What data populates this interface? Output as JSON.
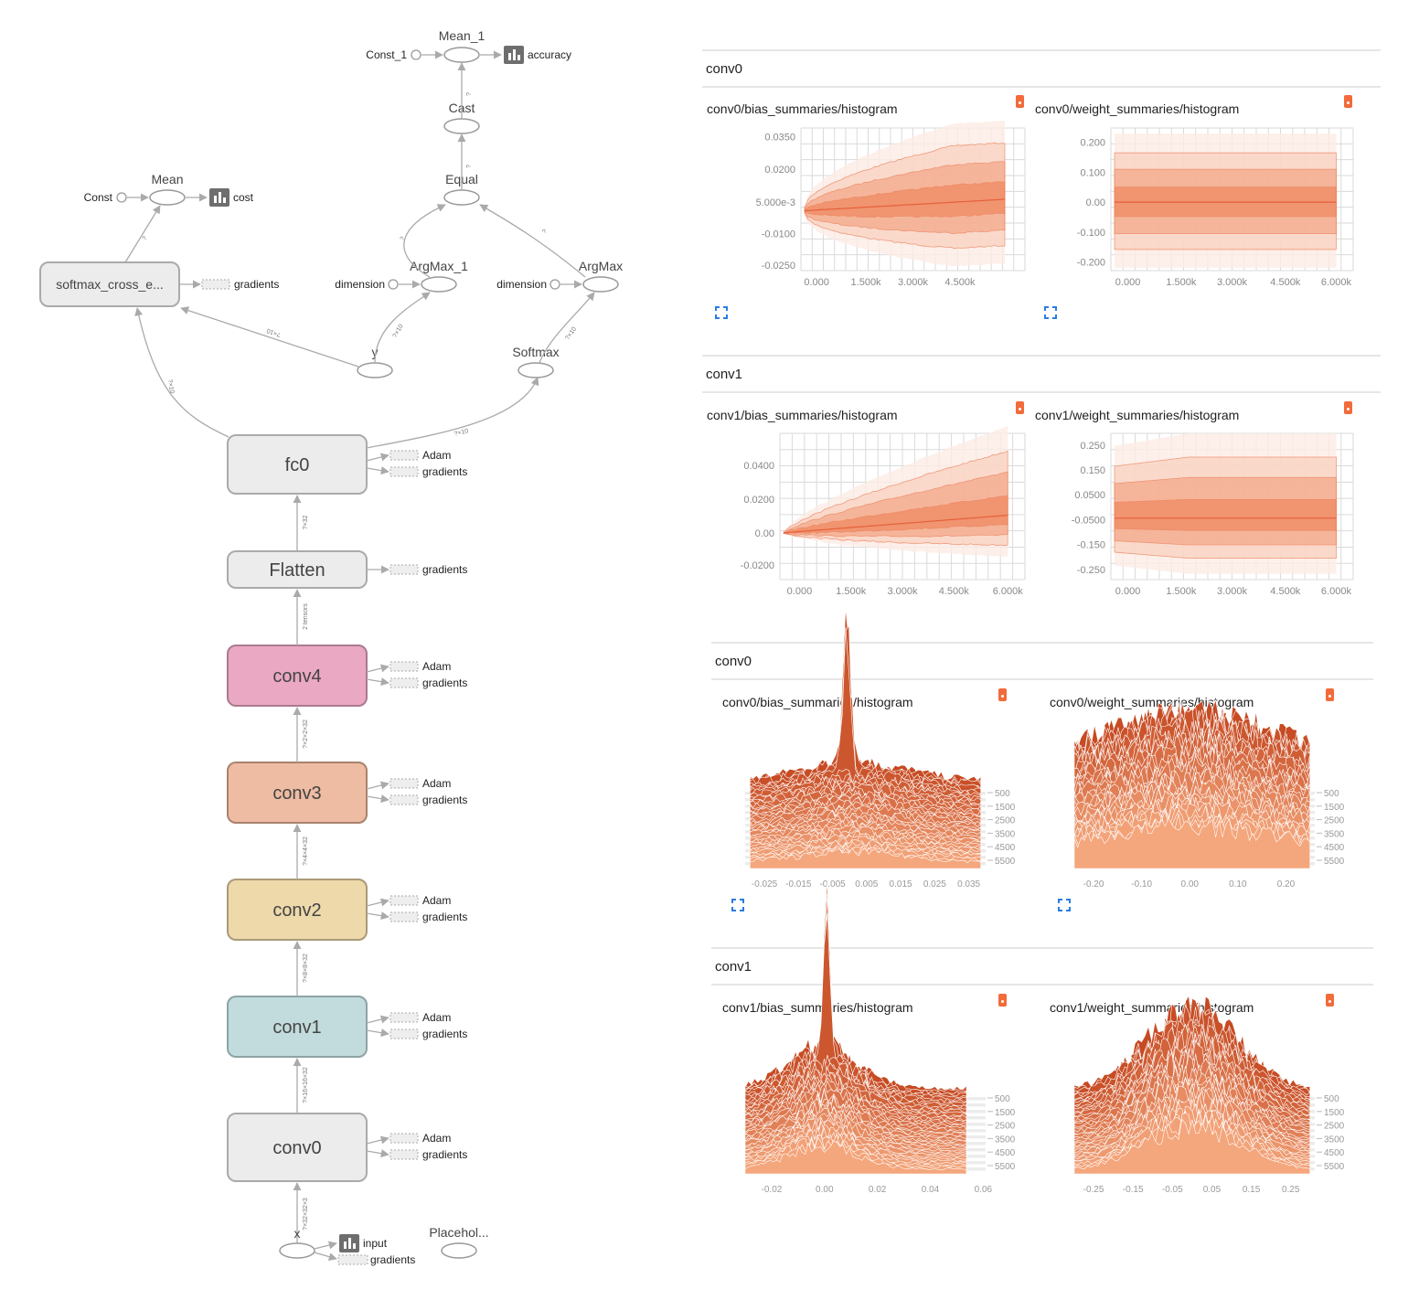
{
  "graph": {
    "main_nodes": [
      {
        "id": "fc0",
        "label": "fc0",
        "fill": "#ececec",
        "stroke": "#aaaaaa",
        "aux": [
          "Adam",
          "gradients"
        ]
      },
      {
        "id": "flatten",
        "label": "Flatten",
        "fill": "#ececec",
        "stroke": "#aaaaaa",
        "aux": [
          "gradients"
        ]
      },
      {
        "id": "conv4",
        "label": "conv4",
        "fill": "#eba8c3",
        "stroke": "#aa7a8e",
        "aux": [
          "Adam",
          "gradients"
        ]
      },
      {
        "id": "conv3",
        "label": "conv3",
        "fill": "#eebca2",
        "stroke": "#a8826e",
        "aux": [
          "Adam",
          "gradients"
        ]
      },
      {
        "id": "conv2",
        "label": "conv2",
        "fill": "#eed9ab",
        "stroke": "#a99a79",
        "aux": [
          "Adam",
          "gradients"
        ]
      },
      {
        "id": "conv1",
        "label": "conv1",
        "fill": "#c2dbdc",
        "stroke": "#8ea3a4",
        "aux": [
          "Adam",
          "gradients"
        ]
      },
      {
        "id": "conv0",
        "label": "conv0",
        "fill": "#ececec",
        "stroke": "#aaaaaa",
        "aux": [
          "Adam",
          "gradients"
        ]
      }
    ],
    "vertical_edge_labels": [
      "?×32",
      "2 tensors",
      "?×2×2×32",
      "?×4×4×32",
      "?×8×8×32",
      "?×16×16×32",
      "?×32×32×3"
    ],
    "softmax_cross": {
      "label": "softmax_cross_e...",
      "aux": "gradients",
      "edge_in": "?×10",
      "edge_in2": "?×10",
      "edge_out": "?"
    },
    "mean": {
      "label": "Mean",
      "const": "Const",
      "summary": "cost"
    },
    "mean_1": {
      "label": "Mean_1",
      "const": "Const_1",
      "summary": "accuracy"
    },
    "cast": {
      "label": "Cast",
      "edge": "?"
    },
    "equal": {
      "label": "Equal",
      "edge": "?"
    },
    "argmax_1": {
      "label": "ArgMax_1",
      "dimension": "dimension",
      "edge": "?"
    },
    "argmax": {
      "label": "ArgMax",
      "dimension": "dimension",
      "edge": "?"
    },
    "y": {
      "label": "y",
      "edge": "?×10"
    },
    "softmax": {
      "label": "Softmax",
      "edge": "?×10",
      "edge_in": "?×10"
    },
    "x": {
      "label": "x",
      "summary": "input",
      "aux": "gradients"
    },
    "placeholder": {
      "label": "Placehol..."
    }
  },
  "dashboard": {
    "distributions": {
      "sections": [
        {
          "header": "conv0",
          "cards": [
            {
              "title": "conv0/bias_summaries/histogram",
              "yticks": [
                "0.0350",
                "0.0200",
                "5.000e-3",
                "-0.0100",
                "-0.0250"
              ],
              "xticks": [
                "0.000",
                "1.500k",
                "3.000k",
                "4.500k"
              ]
            },
            {
              "title": "conv0/weight_summaries/histogram",
              "yticks": [
                "0.200",
                "0.100",
                "0.00",
                "-0.100",
                "-0.200"
              ],
              "xticks": [
                "0.000",
                "1.500k",
                "3.000k",
                "4.500k",
                "6.000k"
              ]
            }
          ]
        },
        {
          "header": "conv1",
          "cards": [
            {
              "title": "conv1/bias_summaries/histogram",
              "yticks": [
                "0.0400",
                "0.0200",
                "0.00",
                "-0.0200"
              ],
              "xticks": [
                "0.000",
                "1.500k",
                "3.000k",
                "4.500k",
                "6.000k"
              ]
            },
            {
              "title": "conv1/weight_summaries/histogram",
              "yticks": [
                "0.250",
                "0.150",
                "0.0500",
                "-0.0500",
                "-0.150",
                "-0.250"
              ],
              "xticks": [
                "0.000",
                "1.500k",
                "3.000k",
                "4.500k",
                "6.000k"
              ]
            }
          ]
        }
      ]
    },
    "histograms": {
      "sections": [
        {
          "header": "conv0",
          "cards": [
            {
              "title": "conv0/bias_summaries/histogram",
              "xticks": [
                "-0.025",
                "-0.015",
                "-0.005",
                "0.005",
                "0.015",
                "0.025",
                "0.035"
              ],
              "steps": [
                "500",
                "1500",
                "2500",
                "3500",
                "4500",
                "5500"
              ]
            },
            {
              "title": "conv0/weight_summaries/histogram",
              "xticks": [
                "-0.20",
                "-0.10",
                "0.00",
                "0.10",
                "0.20"
              ],
              "steps": [
                "500",
                "1500",
                "2500",
                "3500",
                "4500",
                "5500"
              ]
            }
          ]
        },
        {
          "header": "conv1",
          "cards": [
            {
              "title": "conv1/bias_summaries/histogram",
              "xticks": [
                "-0.02",
                "0.00",
                "0.02",
                "0.04",
                "0.06"
              ],
              "steps": [
                "500",
                "1500",
                "2500",
                "3500",
                "4500",
                "5500"
              ]
            },
            {
              "title": "conv1/weight_summaries/histogram",
              "xticks": [
                "-0.25",
                "-0.15",
                "-0.05",
                "0.05",
                "0.15",
                "0.25"
              ],
              "steps": [
                "500",
                "1500",
                "2500",
                "3500",
                "4500",
                "5500"
              ]
            }
          ]
        }
      ]
    }
  },
  "colors": {
    "accent": "#f26b3a",
    "band_dark": "#f08a63",
    "band_mid": "#f4a98a",
    "band_light": "#f9d2c1",
    "band_faint": "#fdebe3",
    "edge": "#aaaaaa",
    "hist_dark": "#c64a22",
    "hist_light": "#f4a67c"
  }
}
